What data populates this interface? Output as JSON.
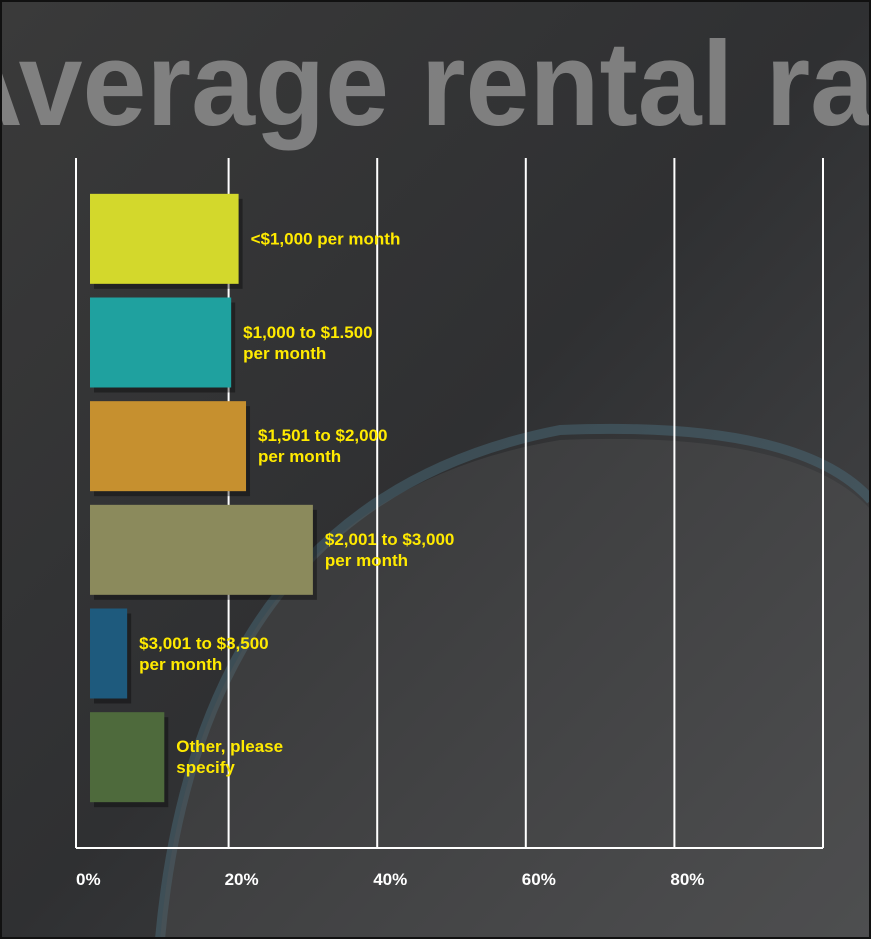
{
  "chart_data": {
    "type": "bar",
    "orientation": "horizontal",
    "title": "Average rental rates",
    "categories": [
      "<$1,000 per month",
      "$1,000 to $1.500\nper month",
      "$1,501 to $2,000\nper month",
      "$2,001 to $3,000\nper month",
      "$3,001 to $3,500\nper month",
      "Other, please\nspecify"
    ],
    "values": [
      20,
      19,
      21,
      30,
      5,
      10
    ],
    "colors": [
      "#d3d82c",
      "#1fa19f",
      "#c6902f",
      "#8b8a5c",
      "#1e5a7d",
      "#4e6a3c"
    ],
    "label_color": "#ffea00",
    "xlim": [
      0,
      100
    ],
    "xticks": [
      {
        "value": 0,
        "label": "0%"
      },
      {
        "value": 20,
        "label": "20%"
      },
      {
        "value": 40,
        "label": "40%"
      },
      {
        "value": 60,
        "label": "60%"
      },
      {
        "value": 80,
        "label": "80%"
      }
    ],
    "grid": true
  }
}
